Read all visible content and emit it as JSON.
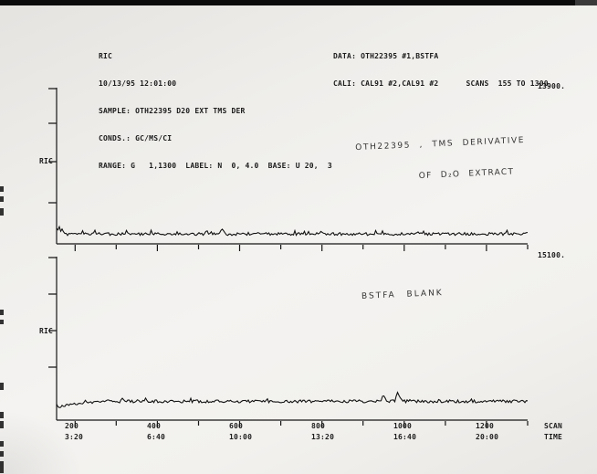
{
  "colors": {
    "ink": "#1b1b1b",
    "paper": "#f0efec",
    "scan_bar": "#0b0b0b"
  },
  "header": {
    "left_lines": [
      "RIC",
      "10/13/95 12:01:00",
      "SAMPLE: OTH22395 D20 EXT TMS DER",
      "CONDS.: GC/MS/CI",
      "RANGE: G   1,1300  LABEL: N  0, 4.0  BASE: U 20,  3"
    ],
    "right_line1": "DATA: OTH22395 #1,BSTFA",
    "right_line2": "CALI: CAL91 #2,CAL91 #2      SCANS  155 TO 1300"
  },
  "charts": [
    {
      "ylabel": "RIC",
      "max_value": "13900.",
      "annotation_line1": "OTH22395 , TMS DERIVATIVE",
      "annotation_line2": "OF D₂O EXTRACT"
    },
    {
      "ylabel": "RIC",
      "max_value": "15100.",
      "annotation_line1": "BSTFA BLANK"
    }
  ],
  "xaxis": {
    "cols": [
      {
        "scan": "200",
        "time": "3:20"
      },
      {
        "scan": "400",
        "time": "6:40"
      },
      {
        "scan": "600",
        "time": "10:00"
      },
      {
        "scan": "800",
        "time": "13:20"
      },
      {
        "scan": "1000",
        "time": "16:40"
      },
      {
        "scan": "1200",
        "time": "20:00"
      }
    ],
    "unit_line1": "SCAN",
    "unit_line2": "TIME"
  },
  "chart_data": [
    {
      "type": "line",
      "title": "RIC - OTH22395, TMS derivative of D2O extract",
      "xlabel": "SCAN / TIME",
      "ylabel": "RIC",
      "x_range_scans": [
        155,
        1300
      ],
      "x_ticks_scans": [
        200,
        400,
        600,
        800,
        1000,
        1200
      ],
      "x_tick_times": [
        "3:20",
        "6:40",
        "10:00",
        "13:20",
        "16:40",
        "20:00"
      ],
      "full_scale_intensity": 13900,
      "grid": false,
      "series": [
        {
          "name": "RIC OTH22395 D20 EXT TMS DER",
          "shape": "near-flat noisy baseline at ~6% of full scale, small elevated blip at trace start (scan 155-180)",
          "baseline_frac": 0.063,
          "noise_frac": 0.009,
          "lead_in": "spike",
          "peaks": [
            {
              "scan": 557,
              "height_frac": 0.03
            },
            {
              "scan": 800,
              "height_frac": 0.014
            }
          ]
        }
      ]
    },
    {
      "type": "line",
      "title": "RIC - BSTFA blank",
      "xlabel": "SCAN / TIME",
      "ylabel": "RIC",
      "x_range_scans": [
        155,
        1300
      ],
      "x_ticks_scans": [
        200,
        400,
        600,
        800,
        1000,
        1200
      ],
      "x_tick_times": [
        "3:20",
        "6:40",
        "10:00",
        "13:20",
        "16:40",
        "20:00"
      ],
      "full_scale_intensity": 15100,
      "grid": false,
      "series": [
        {
          "name": "RIC BSTFA BLANK",
          "shape": "near-flat noisy baseline at ~12% of chart height, rising slightly over scans 155-260, two small spikes near scans 950 and 985",
          "baseline_frac": 0.115,
          "noise_frac": 0.009,
          "lead_in": "rise",
          "peaks": [
            {
              "scan": 950,
              "height_frac": 0.04
            },
            {
              "scan": 985,
              "height_frac": 0.05
            }
          ]
        }
      ]
    }
  ]
}
